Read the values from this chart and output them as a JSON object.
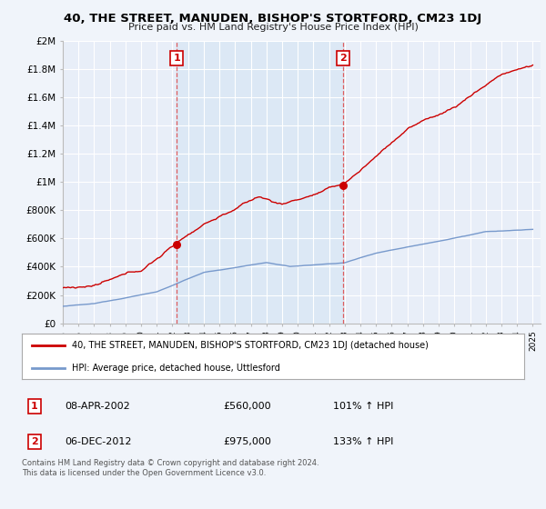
{
  "title": "40, THE STREET, MANUDEN, BISHOP'S STORTFORD, CM23 1DJ",
  "subtitle": "Price paid vs. HM Land Registry's House Price Index (HPI)",
  "xlim": [
    1995,
    2025.5
  ],
  "ylim": [
    0,
    2000000
  ],
  "yticks": [
    0,
    200000,
    400000,
    600000,
    800000,
    1000000,
    1200000,
    1400000,
    1600000,
    1800000,
    2000000
  ],
  "ytick_labels": [
    "£0",
    "£200K",
    "£400K",
    "£600K",
    "£800K",
    "£1M",
    "£1.2M",
    "£1.4M",
    "£1.6M",
    "£1.8M",
    "£2M"
  ],
  "red_line_color": "#cc0000",
  "blue_line_color": "#7799cc",
  "shade_color": "#dce8f5",
  "vline_color": "#dd4444",
  "vline1_x": 2002.27,
  "vline2_x": 2012.92,
  "sale1_price": 560000,
  "sale2_price": 975000,
  "transaction1_date": "08-APR-2002",
  "transaction1_price": "£560,000",
  "transaction1_hpi": "101% ↑ HPI",
  "transaction2_date": "06-DEC-2012",
  "transaction2_price": "£975,000",
  "transaction2_hpi": "133% ↑ HPI",
  "legend_label_red": "40, THE STREET, MANUDEN, BISHOP'S STORTFORD, CM23 1DJ (detached house)",
  "legend_label_blue": "HPI: Average price, detached house, Uttlesford",
  "footer": "Contains HM Land Registry data © Crown copyright and database right 2024.\nThis data is licensed under the Open Government Licence v3.0.",
  "bg_color": "#f0f4fa",
  "plot_bg_color": "#e8eef8"
}
